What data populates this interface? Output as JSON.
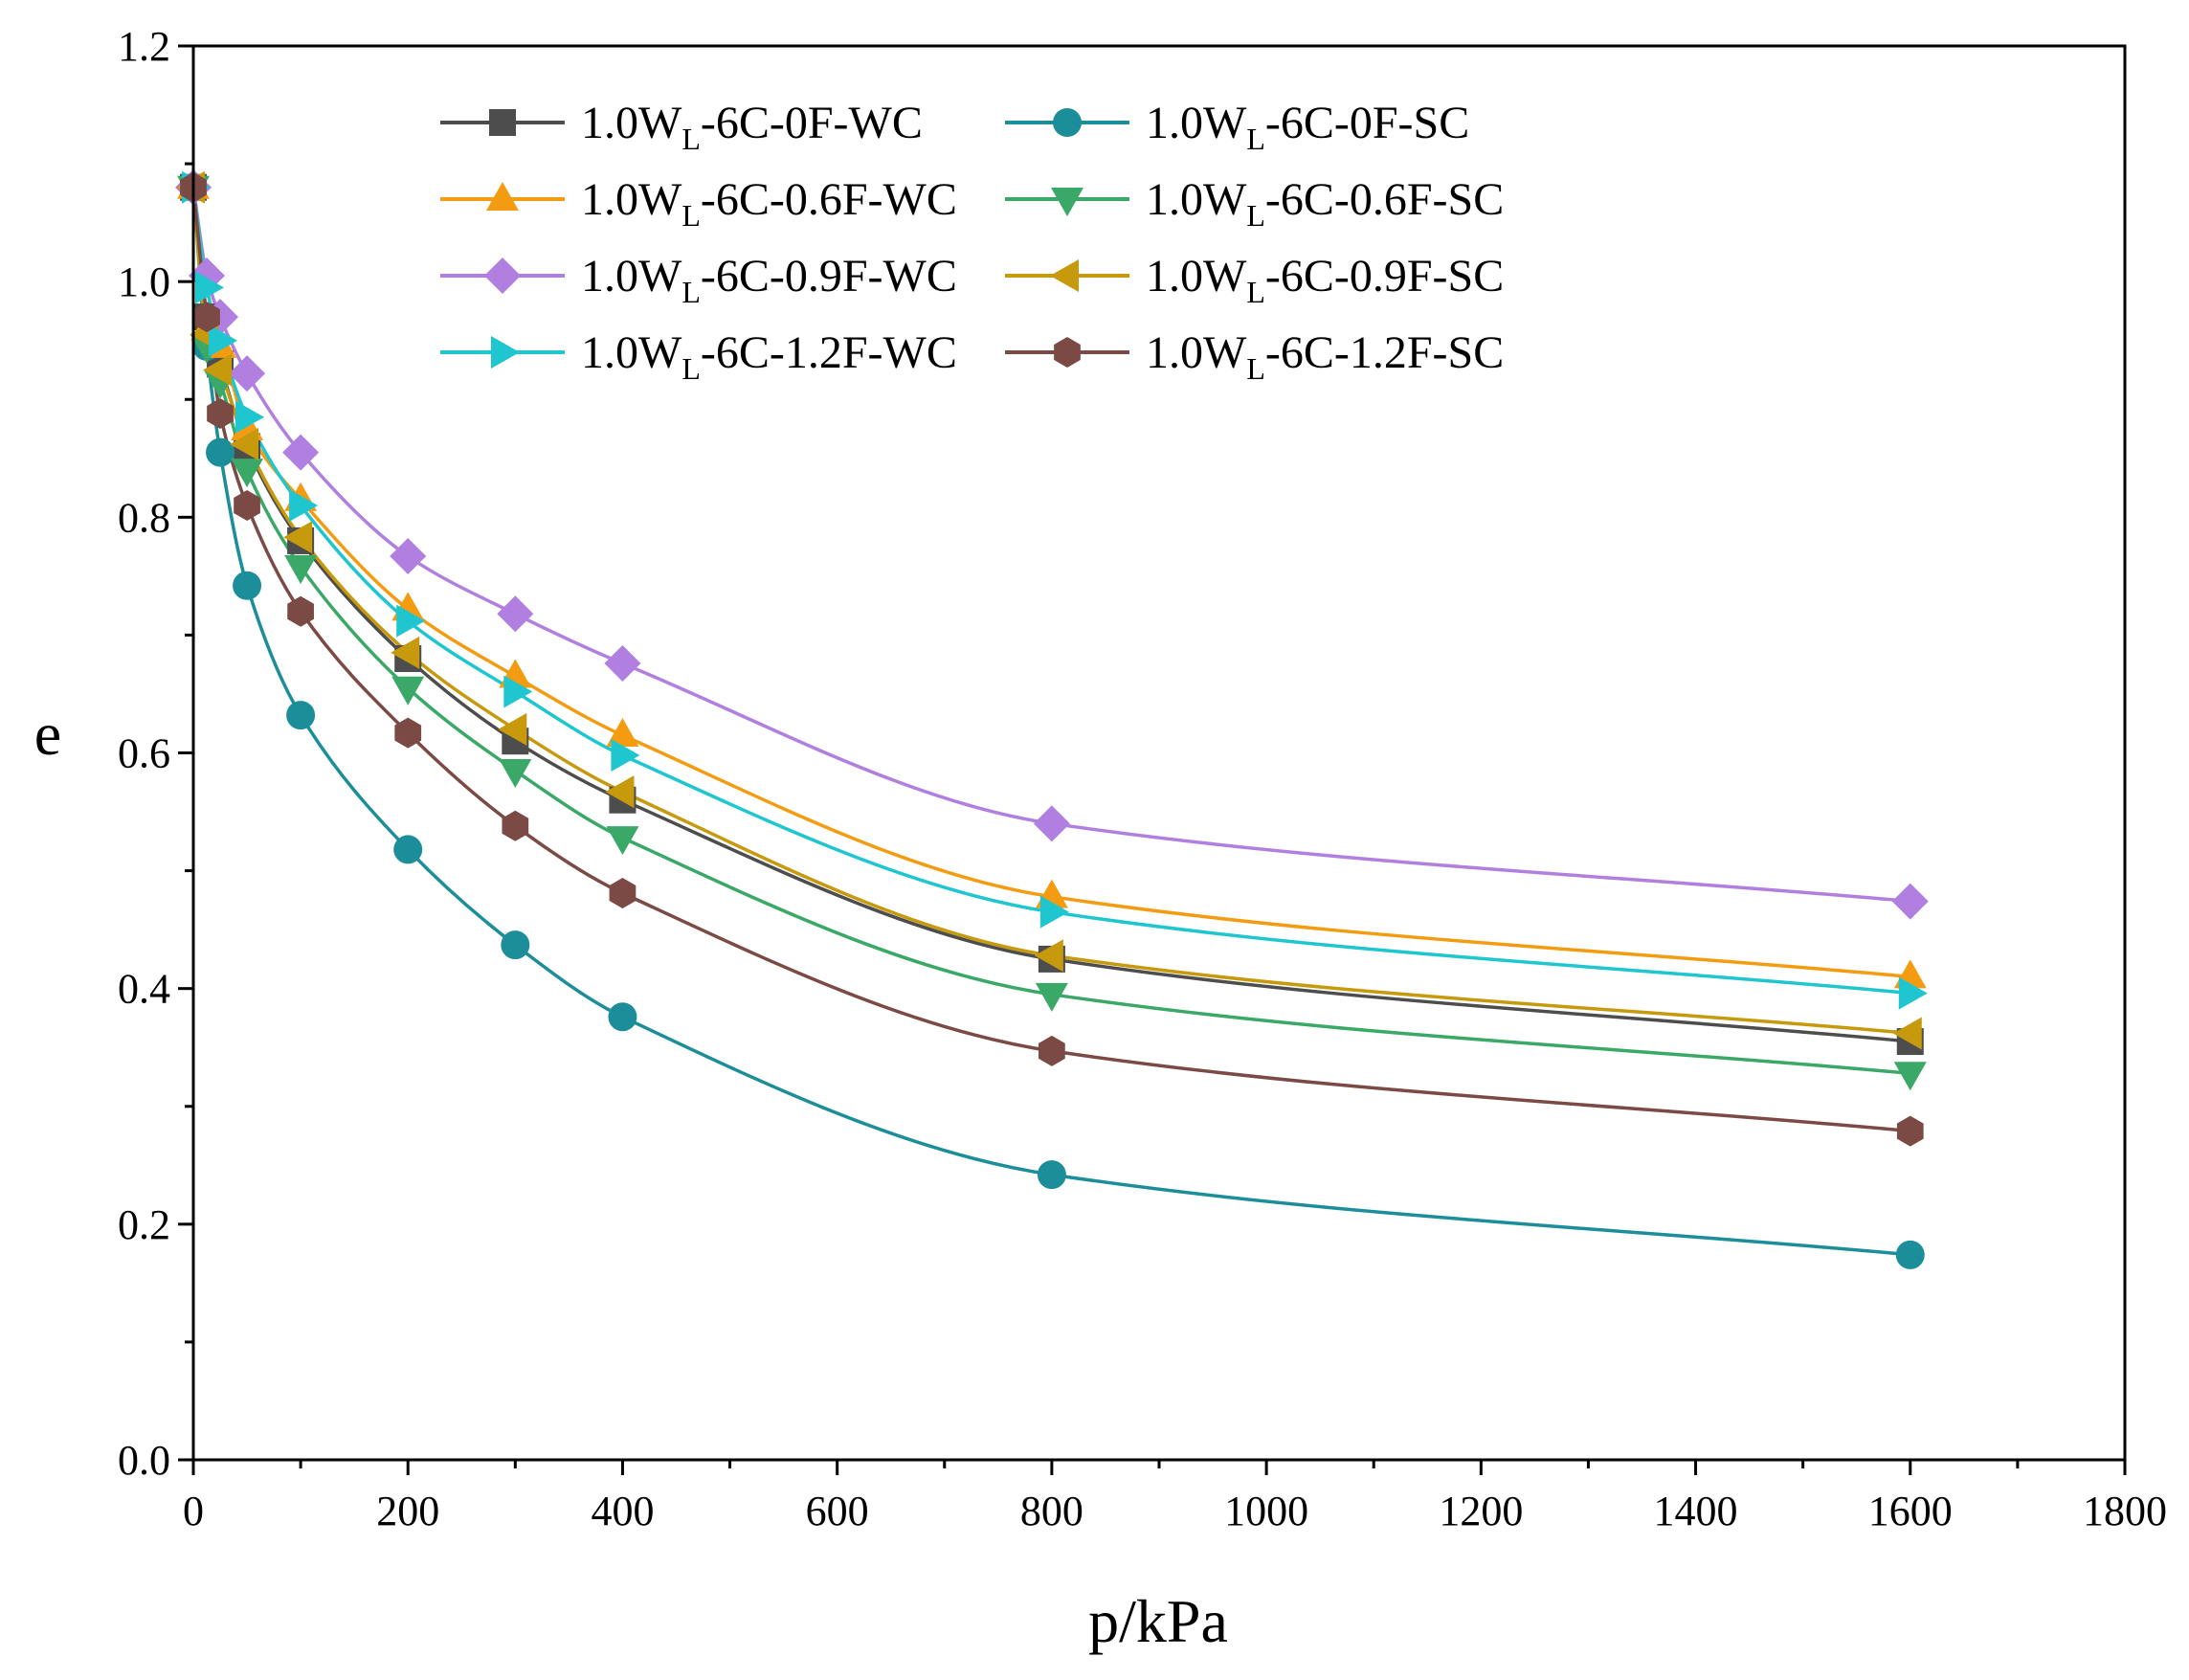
{
  "chart_data": {
    "type": "scatter",
    "title": "",
    "xlabel": "p/kPa",
    "ylabel": "e",
    "xlim": [
      0,
      1800
    ],
    "ylim": [
      0.0,
      1.2
    ],
    "xticks": [
      0,
      200,
      400,
      600,
      800,
      1000,
      1200,
      1400,
      1600,
      1800
    ],
    "xtick_labels": [
      "0",
      "200",
      "400",
      "600",
      "800",
      "1000",
      "1200",
      "1400",
      "1600",
      "1800"
    ],
    "yticks": [
      0.0,
      0.2,
      0.4,
      0.6,
      0.8,
      1.0,
      1.2
    ],
    "ytick_labels": [
      "0.0",
      "0.2",
      "0.4",
      "0.6",
      "0.8",
      "1.0",
      "1.2"
    ],
    "grid": false,
    "legend_position": "top",
    "legend_columns": 2,
    "x": [
      0,
      12.5,
      25,
      50,
      100,
      200,
      300,
      400,
      800,
      1600
    ],
    "series": [
      {
        "name_pre": "1.0W",
        "name_sub": "L",
        "name_post": "-6C-0F-WC",
        "color": "#4d4d4d",
        "marker": "square",
        "values": [
          1.08,
          0.97,
          0.93,
          0.86,
          0.78,
          0.68,
          0.61,
          0.56,
          0.425,
          0.355
        ]
      },
      {
        "name_pre": "1.0W",
        "name_sub": "L",
        "name_post": "-6C-0F-SC",
        "color": "#1c8e99",
        "marker": "circle",
        "values": [
          1.08,
          0.945,
          0.855,
          0.742,
          0.632,
          0.518,
          0.437,
          0.376,
          0.242,
          0.174
        ]
      },
      {
        "name_pre": "1.0W",
        "name_sub": "L",
        "name_post": "-6C-0.6F-WC",
        "color": "#f39c12",
        "marker": "triangle-up",
        "values": [
          1.08,
          0.96,
          0.945,
          0.875,
          0.815,
          0.722,
          0.665,
          0.615,
          0.478,
          0.41
        ]
      },
      {
        "name_pre": "1.0W",
        "name_sub": "L",
        "name_post": "-6C-0.6F-SC",
        "color": "#3aa866",
        "marker": "triangle-down",
        "values": [
          1.08,
          0.945,
          0.915,
          0.84,
          0.758,
          0.655,
          0.585,
          0.528,
          0.395,
          0.328
        ]
      },
      {
        "name_pre": "1.0W",
        "name_sub": "L",
        "name_post": "-6C-0.9F-WC",
        "color": "#b07fe0",
        "marker": "diamond",
        "values": [
          1.08,
          1.005,
          0.97,
          0.922,
          0.855,
          0.767,
          0.718,
          0.676,
          0.54,
          0.474
        ]
      },
      {
        "name_pre": "1.0W",
        "name_sub": "L",
        "name_post": "-6C-0.9F-SC",
        "color": "#c79a0e",
        "marker": "triangle-left",
        "values": [
          1.08,
          0.955,
          0.925,
          0.862,
          0.783,
          0.685,
          0.62,
          0.567,
          0.428,
          0.362
        ]
      },
      {
        "name_pre": "1.0W",
        "name_sub": "L",
        "name_post": "-6C-1.2F-WC",
        "color": "#1fc6cf",
        "marker": "triangle-right",
        "values": [
          1.08,
          0.995,
          0.95,
          0.885,
          0.81,
          0.712,
          0.652,
          0.598,
          0.465,
          0.396
        ]
      },
      {
        "name_pre": "1.0W",
        "name_sub": "L",
        "name_post": "-6C-1.2F-SC",
        "color": "#7b4a45",
        "marker": "hexagon",
        "values": [
          1.08,
          0.97,
          0.888,
          0.81,
          0.72,
          0.617,
          0.538,
          0.481,
          0.347,
          0.279
        ]
      }
    ]
  }
}
